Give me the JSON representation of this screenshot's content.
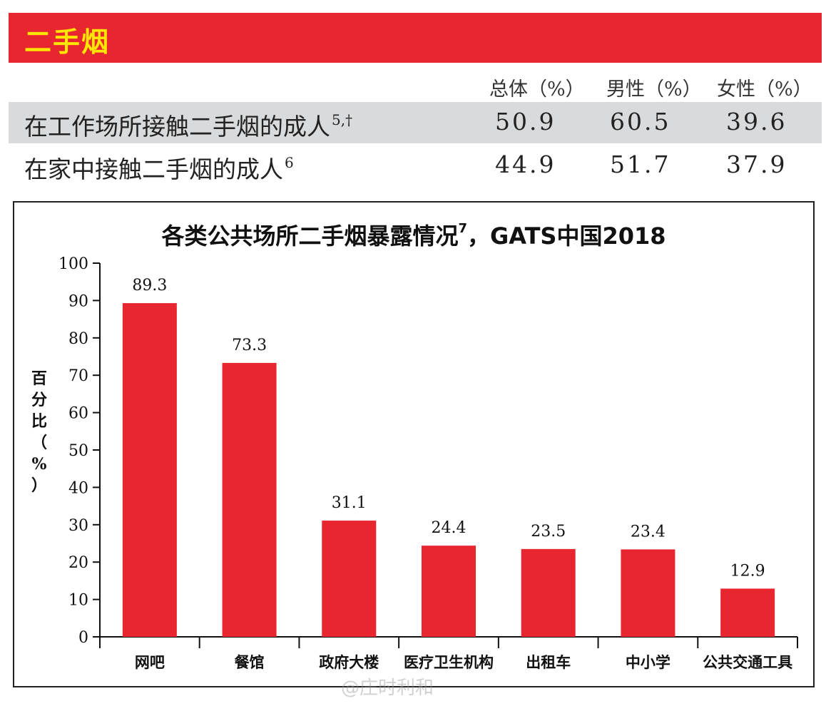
{
  "section_title": "二手烟",
  "table": {
    "headers": [
      "总体（%）",
      "男性（%）",
      "女性（%）"
    ],
    "rows": [
      {
        "label": "在工作场所接触二手烟的成人",
        "note": "5,†",
        "values": [
          "50.9",
          "60.5",
          "39.6"
        ]
      },
      {
        "label": "在家中接触二手烟的成人",
        "note": "6",
        "values": [
          "44.9",
          "51.7",
          "37.9"
        ]
      }
    ]
  },
  "chart_data": {
    "type": "bar",
    "title": "各类公共场所二手烟暴露情况",
    "title_note": "7",
    "title_suffix": "，GATS中国2018",
    "ylabel": "百分比（%）",
    "ylabel_chars": [
      "百",
      "分",
      "比",
      "（",
      "%",
      "）"
    ],
    "xlabel": "",
    "ylim": [
      0,
      100
    ],
    "yticks": [
      0,
      10,
      20,
      30,
      40,
      50,
      60,
      70,
      80,
      90,
      100
    ],
    "categories": [
      "网吧",
      "餐馆",
      "政府大楼",
      "医疗卫生机构",
      "出租车",
      "中小学",
      "公共交通工具"
    ],
    "values": [
      89.3,
      73.3,
      31.1,
      24.4,
      23.5,
      23.4,
      12.9
    ],
    "bar_color": "#e8262f",
    "grid": false
  },
  "watermark": "@庄时利和"
}
